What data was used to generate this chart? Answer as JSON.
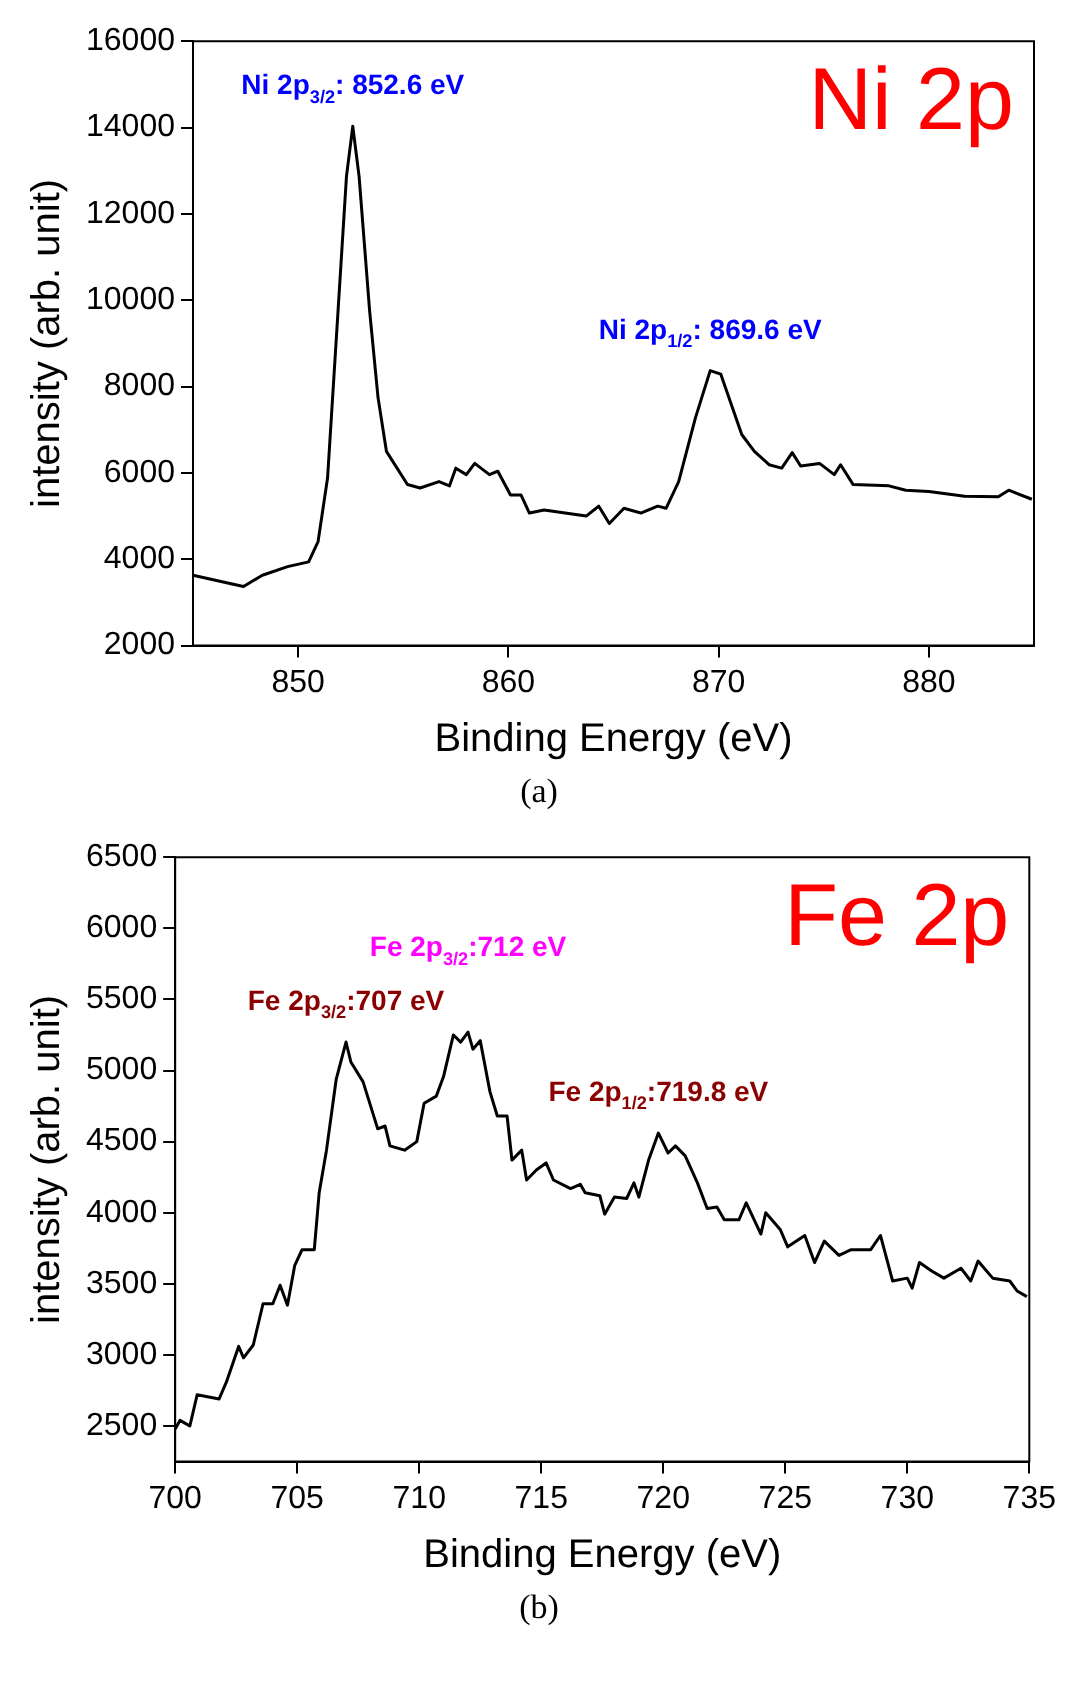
{
  "chart_data": [
    {
      "type": "line",
      "xlabel": "Binding Energy (eV)",
      "ylabel": "intensity (arb. unit)",
      "marker": "none",
      "grid": false,
      "legend": false,
      "xlim": [
        845,
        885
      ],
      "xticks": [
        850,
        860,
        870,
        880
      ],
      "ylim": [
        2000,
        16000
      ],
      "yticks": [
        2000,
        4000,
        6000,
        8000,
        10000,
        12000,
        14000,
        16000
      ],
      "x": [
        845,
        847.4,
        848.3,
        849.5,
        850.5,
        850.95,
        851.4,
        851.9,
        852.3,
        852.6,
        852.9,
        853.4,
        853.8,
        854.2,
        855.2,
        855.8,
        856.7,
        857.2,
        857.5,
        858.0,
        858.4,
        859.1,
        859.5,
        860.1,
        860.6,
        861.0,
        861.7,
        862.7,
        863.7,
        864.3,
        864.8,
        865.5,
        866.3,
        867.1,
        867.5,
        868.1,
        868.9,
        869.6,
        870.1,
        870.6,
        871.1,
        871.7,
        872.4,
        873.0,
        873.5,
        873.9,
        874.8,
        875.5,
        875.8,
        876.4,
        878.1,
        878.9,
        880.0,
        881.7,
        883.3,
        883.8,
        884.9
      ],
      "series": [
        {
          "color": "#000000",
          "values": [
            3630,
            3370,
            3630,
            3830,
            3940,
            4410,
            5880,
            9760,
            12870,
            14030,
            12870,
            9760,
            7750,
            6500,
            5730,
            5650,
            5800,
            5700,
            6110,
            5960,
            6220,
            5960,
            6040,
            5490,
            5490,
            5070,
            5140,
            5070,
            5000,
            5230,
            4830,
            5180,
            5070,
            5230,
            5180,
            5800,
            7280,
            8370,
            8290,
            7590,
            6890,
            6500,
            6190,
            6110,
            6470,
            6160,
            6220,
            5960,
            6190,
            5730,
            5700,
            5600,
            5570,
            5460,
            5450,
            5600,
            5390
          ]
        }
      ],
      "annotations": [
        {
          "text": "Ni 2p$_{3/2}$: 852.6 eV",
          "x": 852.6,
          "y": 14030
        },
        {
          "text": "Ni 2p$_{1/2}$: 869.6 eV",
          "x": 869.6,
          "y": 8370
        },
        "Ni 2p",
        "(a)"
      ]
    },
    {
      "type": "line",
      "xlabel": "Binding Energy (eV)",
      "ylabel": "intensity (arb. unit)",
      "marker": "none",
      "grid": false,
      "legend": false,
      "xlim": [
        700,
        735
      ],
      "xticks": [
        700,
        705,
        710,
        715,
        720,
        725,
        730,
        735
      ],
      "ylim": [
        2250,
        6500
      ],
      "yticks": [
        2500,
        3000,
        3500,
        4000,
        4500,
        5000,
        5500,
        6000,
        6500
      ],
      "x": [
        700,
        700.2,
        700.6,
        700.9,
        701.8,
        702.1,
        702.6,
        702.8,
        703.2,
        703.6,
        704.0,
        704.3,
        704.6,
        704.9,
        705.2,
        705.7,
        705.9,
        706.2,
        706.6,
        707.0,
        707.2,
        707.7,
        708.3,
        708.6,
        708.8,
        709.4,
        709.9,
        710.2,
        710.7,
        711.0,
        711.4,
        711.7,
        712.0,
        712.2,
        712.5,
        712.9,
        713.2,
        713.6,
        713.8,
        714.2,
        714.4,
        714.8,
        715.2,
        715.5,
        716.2,
        716.6,
        716.8,
        717.4,
        717.6,
        718.0,
        718.5,
        718.8,
        719.0,
        719.4,
        719.8,
        720.2,
        720.5,
        720.9,
        721.4,
        721.8,
        722.2,
        722.5,
        723.1,
        723.4,
        724.0,
        724.2,
        724.8,
        725.1,
        725.8,
        726.2,
        726.6,
        727.2,
        727.7,
        728.5,
        728.9,
        729.4,
        730.0,
        730.2,
        730.5,
        731.0,
        731.5,
        732.2,
        732.6,
        732.9,
        733.5,
        734.2,
        734.5,
        734.9
      ],
      "series": [
        {
          "color": "#000000",
          "values": [
            2480,
            2540,
            2500,
            2720,
            2690,
            2810,
            3060,
            2980,
            3070,
            3360,
            3360,
            3490,
            3350,
            3630,
            3740,
            3740,
            4140,
            4440,
            4940,
            5200,
            5060,
            4920,
            4590,
            4610,
            4470,
            4440,
            4500,
            4770,
            4820,
            4960,
            5250,
            5200,
            5270,
            5150,
            5210,
            4850,
            4680,
            4680,
            4370,
            4440,
            4230,
            4300,
            4350,
            4230,
            4170,
            4200,
            4140,
            4120,
            3990,
            4110,
            4100,
            4210,
            4110,
            4370,
            4560,
            4420,
            4470,
            4400,
            4210,
            4030,
            4040,
            3950,
            3950,
            4070,
            3850,
            4000,
            3880,
            3760,
            3840,
            3650,
            3800,
            3700,
            3740,
            3740,
            3840,
            3520,
            3540,
            3470,
            3650,
            3590,
            3540,
            3610,
            3520,
            3660,
            3540,
            3520,
            3450,
            3410
          ]
        }
      ],
      "annotations": [
        {
          "text": "Fe 2p$_{3/2}$:707 eV",
          "x": 707,
          "y": 5200
        },
        {
          "text": "Fe 2p$_{3/2}$:712 eV",
          "x": 712,
          "y": 5270
        },
        {
          "text": "Fe 2p$_{1/2}$:719.8 eV",
          "x": 719.8,
          "y": 4560
        },
        "Fe 2p",
        "(b)"
      ]
    }
  ]
}
